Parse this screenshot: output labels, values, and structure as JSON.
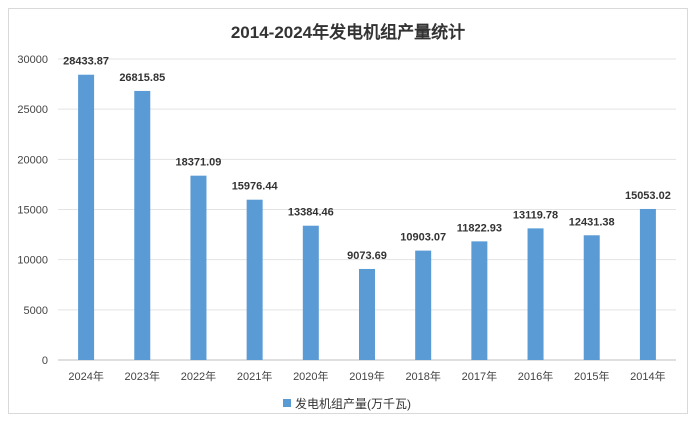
{
  "chart_data": {
    "type": "bar",
    "title": "2014-2024年发电机组产量统计",
    "categories": [
      "2024年",
      "2023年",
      "2022年",
      "2021年",
      "2020年",
      "2019年",
      "2018年",
      "2017年",
      "2016年",
      "2015年",
      "2014年"
    ],
    "series": [
      {
        "name": "发电机组产量(万千瓦)",
        "values": [
          28433.87,
          26815.85,
          18371.09,
          15976.44,
          13384.46,
          9073.69,
          10903.07,
          11822.93,
          13119.78,
          12431.38,
          15053.02
        ],
        "color": "#5b9bd5"
      }
    ],
    "data_labels": [
      "28433.87",
      "26815.85",
      "18371.09",
      "15976.44",
      "13384.46",
      "9073.69",
      "10903.07",
      "11822.93",
      "13119.78",
      "12431.38",
      "15053.02"
    ],
    "yticks": [
      0,
      5000,
      10000,
      15000,
      20000,
      25000,
      30000
    ],
    "ylim": [
      0,
      30000
    ],
    "xlabel": "",
    "ylabel": "",
    "grid": true,
    "legend": "bottom"
  }
}
